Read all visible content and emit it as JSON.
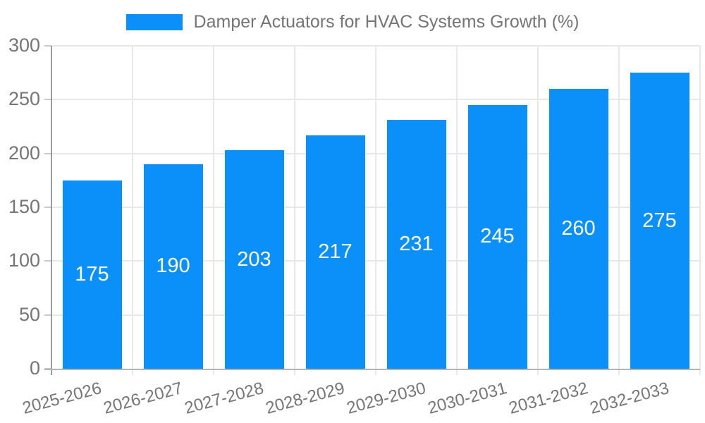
{
  "chart_data": {
    "type": "bar",
    "title": "Damper Actuators for HVAC Systems Growth (%)",
    "legend": {
      "label": "Damper Actuators for HVAC Systems Growth (%)",
      "position": "top-center"
    },
    "categories": [
      "2025-2026",
      "2026-2027",
      "2027-2028",
      "2028-2029",
      "2029-2030",
      "2030-2031",
      "2031-2032",
      "2032-2033"
    ],
    "values": [
      175,
      190,
      203,
      217,
      231,
      245,
      260,
      275
    ],
    "bar_value_labels": [
      "175",
      "190",
      "203",
      "217",
      "231",
      "245",
      "260",
      "275"
    ],
    "xlabel": "",
    "ylabel": "",
    "ylim": [
      0,
      300
    ],
    "yticks": [
      0,
      50,
      100,
      150,
      200,
      250,
      300
    ],
    "grid": "both",
    "legend_position": "top",
    "colors": {
      "bar": "#0a90f8",
      "bar_label_text": "#ffffff",
      "gridline": "#e8e8e8",
      "y_axis_line": "#9b9b9b",
      "x_axis_line": "#b4b4b4",
      "tick_mark": "#c9c9c9",
      "tick_text": "#757575",
      "background": "#ffffff"
    }
  }
}
